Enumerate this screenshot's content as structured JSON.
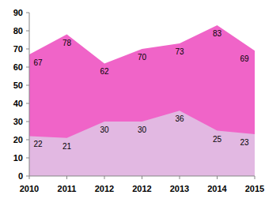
{
  "chart_data": {
    "type": "area",
    "categories": [
      "2010",
      "2011",
      "2012",
      "2012",
      "2013",
      "2014",
      "2015"
    ],
    "series": [
      {
        "color": "#f064c8",
        "values": [
          67,
          78,
          62,
          70,
          73,
          83,
          69
        ]
      },
      {
        "color": "#e2b8e2",
        "values": [
          22,
          21,
          30,
          30,
          36,
          25,
          23
        ]
      }
    ],
    "ylim": [
      0,
      90
    ],
    "yticks": [
      0,
      10,
      20,
      30,
      40,
      50,
      60,
      70,
      80,
      90
    ],
    "grid": false,
    "data_labels": true
  }
}
